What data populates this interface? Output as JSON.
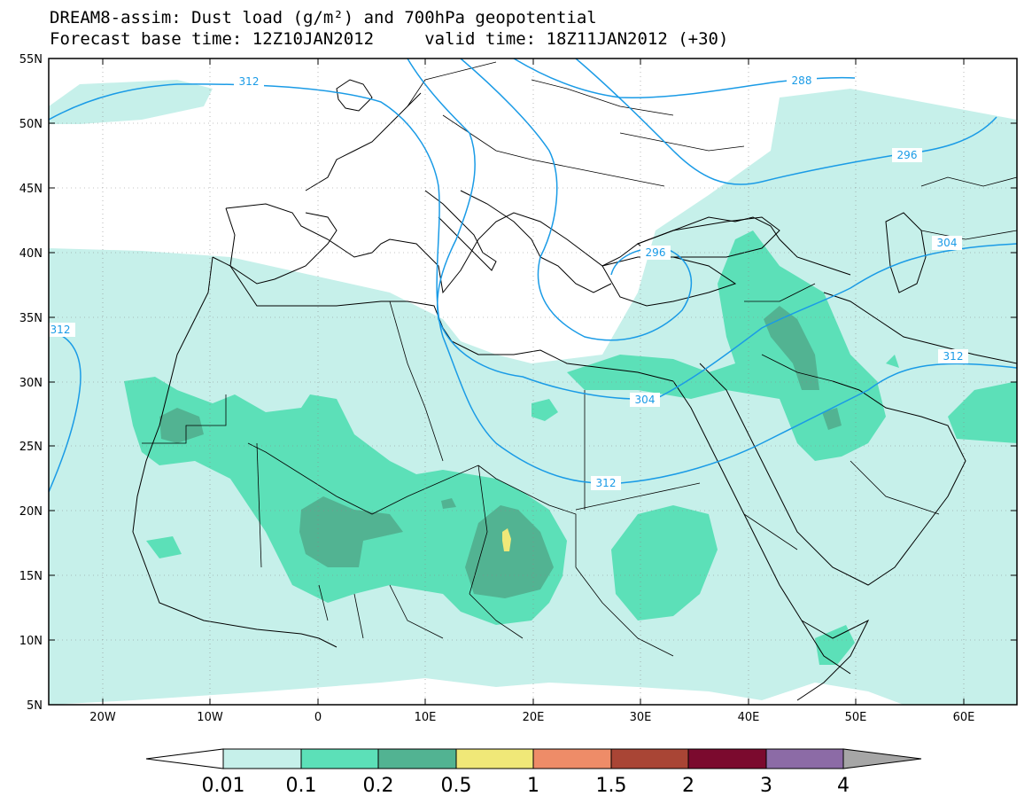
{
  "title": {
    "line1": "DREAM8-assim: Dust load (g/m²) and 700hPa geopotential",
    "line2": "Forecast base time: 12Z10JAN2012     valid time: 18Z11JAN2012 (+30)"
  },
  "axes": {
    "lat_labels": [
      "55N",
      "50N",
      "45N",
      "40N",
      "35N",
      "30N",
      "25N",
      "20N",
      "15N",
      "10N",
      "5N"
    ],
    "lon_labels": [
      "20W",
      "10W",
      "0",
      "10E",
      "20E",
      "30E",
      "40E",
      "50E",
      "60E"
    ],
    "lat_range": [
      5,
      55
    ],
    "lon_range": [
      -25,
      65
    ],
    "grid": "dotted"
  },
  "contour_labels": {
    "c288": "288",
    "c296a": "296",
    "c296b": "296",
    "c304a": "304",
    "c304b": "304",
    "c312a": "312",
    "c312b": "312",
    "c312c": "312",
    "c312d": "312"
  },
  "colorbar": {
    "labels": [
      "0.01",
      "0.1",
      "0.2",
      "0.5",
      "1",
      "1.5",
      "2",
      "3",
      "4"
    ],
    "colors": [
      "#c6f0ea",
      "#5ce0b8",
      "#52b392",
      "#f0e878",
      "#ee8c68",
      "#a94535",
      "#7b0a2e",
      "#8c6ba6"
    ],
    "low_arrow_color": "#ffffff",
    "high_arrow_color": "#a6a6a6"
  },
  "colors": {
    "contour": "#1a9be6",
    "land_border": "#000000"
  }
}
